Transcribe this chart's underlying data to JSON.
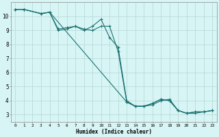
{
  "xlabel": "Humidex (Indice chaleur)",
  "bg_color": "#d8f5f5",
  "grid_color": "#b8dada",
  "line_color": "#1a7070",
  "xlim": [
    -0.5,
    23.5
  ],
  "ylim": [
    2.5,
    11.0
  ],
  "xticks": [
    0,
    1,
    2,
    3,
    4,
    5,
    6,
    7,
    8,
    9,
    10,
    11,
    12,
    13,
    14,
    15,
    16,
    17,
    18,
    19,
    20,
    21,
    22,
    23
  ],
  "yticks": [
    3,
    4,
    5,
    6,
    7,
    8,
    9,
    10
  ],
  "series": [
    {
      "x": [
        0,
        1,
        3,
        4,
        5,
        6,
        7,
        8,
        9,
        10,
        11,
        12,
        13,
        14,
        15,
        16,
        17,
        18,
        19,
        20,
        21,
        22,
        23
      ],
      "y": [
        10.5,
        10.5,
        10.2,
        10.3,
        9.1,
        9.2,
        9.3,
        9.0,
        9.3,
        9.8,
        8.5,
        7.8,
        4.0,
        3.6,
        3.6,
        3.7,
        4.0,
        4.1,
        3.3,
        3.1,
        3.1,
        3.2,
        3.3
      ],
      "marker": true
    },
    {
      "x": [
        0,
        1,
        3,
        4,
        5,
        6,
        7,
        8,
        9,
        10,
        11,
        12,
        13,
        14,
        15,
        16,
        17,
        18,
        19,
        20,
        21,
        22,
        23
      ],
      "y": [
        10.5,
        10.5,
        10.2,
        10.3,
        9.0,
        9.1,
        9.3,
        9.1,
        9.0,
        9.3,
        9.3,
        7.5,
        3.9,
        3.6,
        3.6,
        3.8,
        4.1,
        4.0,
        3.3,
        3.1,
        3.2,
        3.2,
        3.3
      ],
      "marker": true
    },
    {
      "x": [
        0,
        1,
        3,
        4,
        13,
        14,
        15,
        16,
        17,
        18,
        19,
        20,
        21,
        22,
        23
      ],
      "y": [
        10.5,
        10.5,
        10.2,
        10.3,
        3.9,
        3.6,
        3.6,
        3.8,
        4.1,
        4.0,
        3.3,
        3.1,
        3.2,
        3.2,
        3.3
      ],
      "marker": true
    }
  ]
}
